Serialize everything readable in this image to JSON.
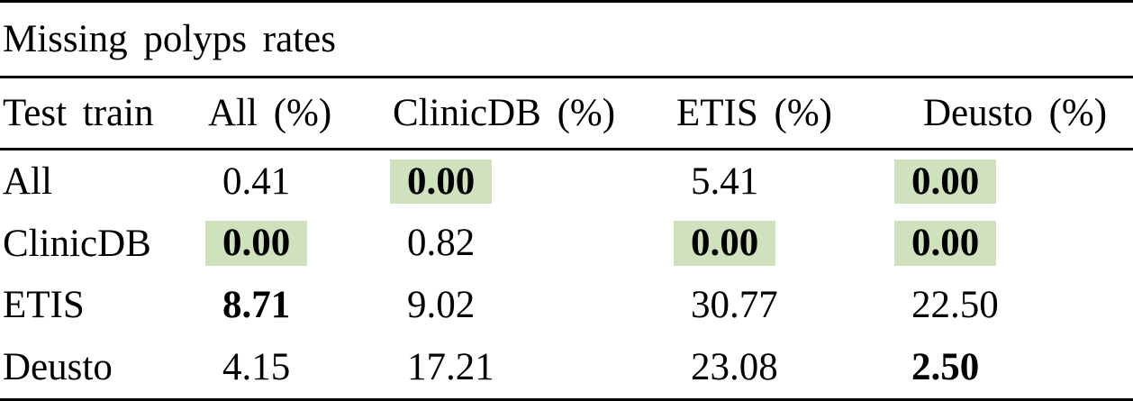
{
  "table": {
    "title": "Missing polyps rates",
    "columns": [
      "Test train",
      "All (%)",
      "ClinicDB (%)",
      "ETIS (%)",
      "Deusto (%)"
    ],
    "rows": [
      {
        "label": "All",
        "cells": [
          {
            "value": "0.41",
            "bold": false,
            "highlight": false
          },
          {
            "value": "0.00",
            "bold": true,
            "highlight": true
          },
          {
            "value": "5.41",
            "bold": false,
            "highlight": false
          },
          {
            "value": "0.00",
            "bold": true,
            "highlight": true
          }
        ]
      },
      {
        "label": "ClinicDB",
        "cells": [
          {
            "value": "0.00",
            "bold": true,
            "highlight": true
          },
          {
            "value": "0.82",
            "bold": false,
            "highlight": false
          },
          {
            "value": "0.00",
            "bold": true,
            "highlight": true
          },
          {
            "value": "0.00",
            "bold": true,
            "highlight": true
          }
        ]
      },
      {
        "label": "ETIS",
        "cells": [
          {
            "value": "8.71",
            "bold": true,
            "highlight": false
          },
          {
            "value": "9.02",
            "bold": false,
            "highlight": false
          },
          {
            "value": "30.77",
            "bold": false,
            "highlight": false
          },
          {
            "value": "22.50",
            "bold": false,
            "highlight": false
          }
        ]
      },
      {
        "label": "Deusto",
        "cells": [
          {
            "value": "4.15",
            "bold": false,
            "highlight": false
          },
          {
            "value": "17.21",
            "bold": false,
            "highlight": false
          },
          {
            "value": "23.08",
            "bold": false,
            "highlight": false
          },
          {
            "value": "2.50",
            "bold": true,
            "highlight": false
          }
        ]
      }
    ],
    "highlight_color": "#cfe2bd"
  }
}
